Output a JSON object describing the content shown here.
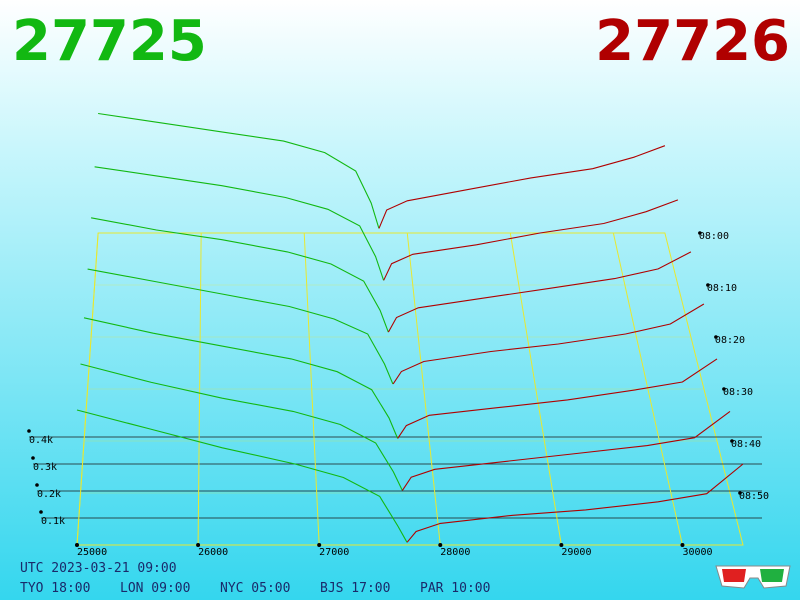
{
  "chart_data": {
    "type": "depth3d",
    "bid": "27725",
    "ask": "27726",
    "bid_color": "#12b812",
    "ask_color": "#b00000",
    "xlim": [
      25000,
      30500
    ],
    "xticks": [
      25000,
      26000,
      27000,
      28000,
      29000,
      30000
    ],
    "zlim": [
      0,
      1
    ],
    "zticks": [
      {
        "value": 0.1,
        "label": "0.1k"
      },
      {
        "value": 0.2,
        "label": "0.2k"
      },
      {
        "value": 0.3,
        "label": "0.3k"
      },
      {
        "value": 0.4,
        "label": "0.4k"
      }
    ],
    "tlim": [
      "08:00",
      "09:00"
    ],
    "tticks": [
      "08:00",
      "08:10",
      "08:20",
      "08:30",
      "08:40",
      "08:50"
    ],
    "bid_prices": [
      25000,
      25600,
      26200,
      26800,
      27200,
      27500,
      27650,
      27725
    ],
    "ask_prices": [
      27726,
      27800,
      28000,
      28600,
      29200,
      29800,
      30200,
      30500
    ],
    "snapshots": [
      {
        "time": "08:00",
        "bids": [
          0.52,
          0.48,
          0.44,
          0.4,
          0.35,
          0.27,
          0.13,
          0.02
        ],
        "asks": [
          0.02,
          0.1,
          0.14,
          0.19,
          0.24,
          0.28,
          0.33,
          0.38
        ]
      },
      {
        "time": "08:10",
        "bids": [
          0.5,
          0.46,
          0.42,
          0.37,
          0.32,
          0.25,
          0.12,
          0.02
        ],
        "asks": [
          0.02,
          0.09,
          0.13,
          0.17,
          0.22,
          0.26,
          0.31,
          0.36
        ]
      },
      {
        "time": "08:20",
        "bids": [
          0.49,
          0.44,
          0.4,
          0.35,
          0.3,
          0.23,
          0.11,
          0.02
        ],
        "asks": [
          0.02,
          0.08,
          0.12,
          0.16,
          0.2,
          0.24,
          0.28,
          0.35
        ]
      },
      {
        "time": "08:30",
        "bids": [
          0.48,
          0.43,
          0.38,
          0.33,
          0.28,
          0.22,
          0.1,
          0.02
        ],
        "asks": [
          0.02,
          0.07,
          0.11,
          0.15,
          0.18,
          0.22,
          0.26,
          0.34
        ]
      },
      {
        "time": "08:40",
        "bids": [
          0.48,
          0.42,
          0.37,
          0.32,
          0.27,
          0.2,
          0.09,
          0.01
        ],
        "asks": [
          0.01,
          0.06,
          0.1,
          0.13,
          0.16,
          0.2,
          0.23,
          0.32
        ]
      },
      {
        "time": "08:50",
        "bids": [
          0.49,
          0.42,
          0.36,
          0.31,
          0.26,
          0.19,
          0.08,
          0.01
        ],
        "asks": [
          0.01,
          0.06,
          0.09,
          0.12,
          0.15,
          0.18,
          0.21,
          0.31
        ]
      },
      {
        "time": "09:00",
        "bids": [
          0.5,
          0.43,
          0.36,
          0.3,
          0.25,
          0.18,
          0.07,
          0.01
        ],
        "asks": [
          0.01,
          0.05,
          0.08,
          0.11,
          0.13,
          0.16,
          0.19,
          0.3
        ]
      }
    ],
    "footer": {
      "utc": "UTC 2023-03-21 09:00",
      "cities": [
        "TYO 18:00",
        "LON 09:00",
        "NYC 05:00",
        "BJS 17:00",
        "PAR 10:00"
      ]
    }
  }
}
